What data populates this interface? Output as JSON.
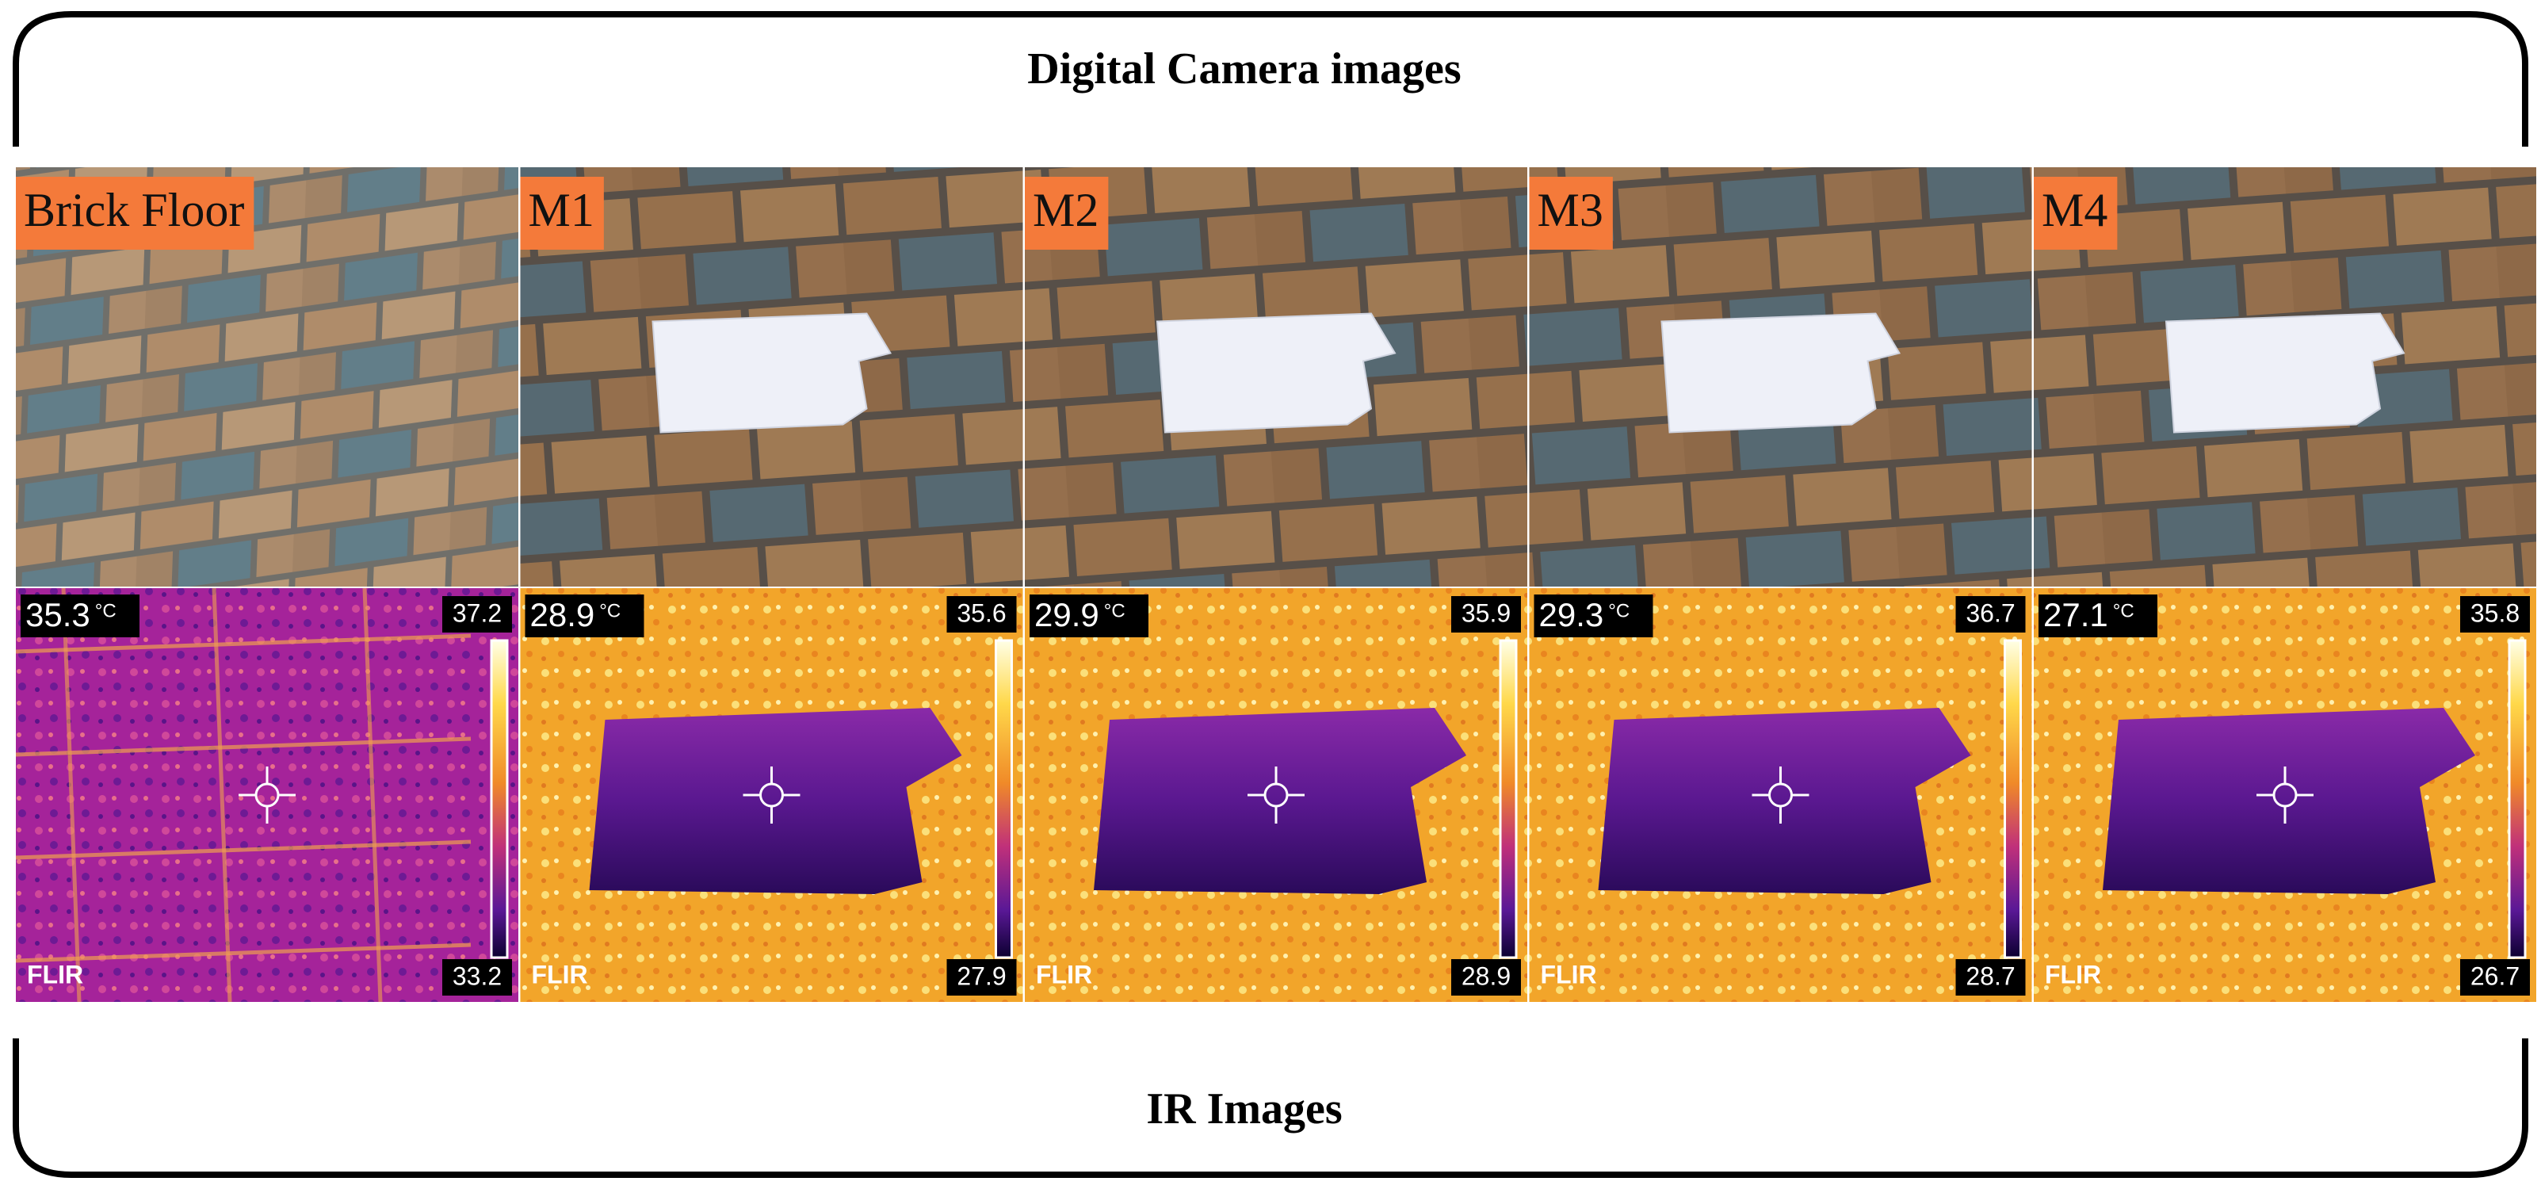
{
  "header": {
    "title": "Digital Camera images"
  },
  "footer": {
    "title": "IR Images"
  },
  "panels": [
    {
      "label": "Brick Floor",
      "ir": {
        "spot": "35.3",
        "unit": "°C",
        "max": "37.2",
        "min": "33.2",
        "logo": "FLIR"
      }
    },
    {
      "label": "M1",
      "ir": {
        "spot": "28.9",
        "unit": "°C",
        "max": "35.6",
        "min": "27.9",
        "logo": "FLIR"
      }
    },
    {
      "label": "M2",
      "ir": {
        "spot": "29.9",
        "unit": "°C",
        "max": "35.9",
        "min": "28.9",
        "logo": "FLIR"
      }
    },
    {
      "label": "M3",
      "ir": {
        "spot": "29.3",
        "unit": "°C",
        "max": "36.7",
        "min": "28.7",
        "logo": "FLIR"
      }
    },
    {
      "label": "M4",
      "ir": {
        "spot": "27.1",
        "unit": "°C",
        "max": "35.8",
        "min": "26.7",
        "logo": "FLIR"
      }
    }
  ]
}
